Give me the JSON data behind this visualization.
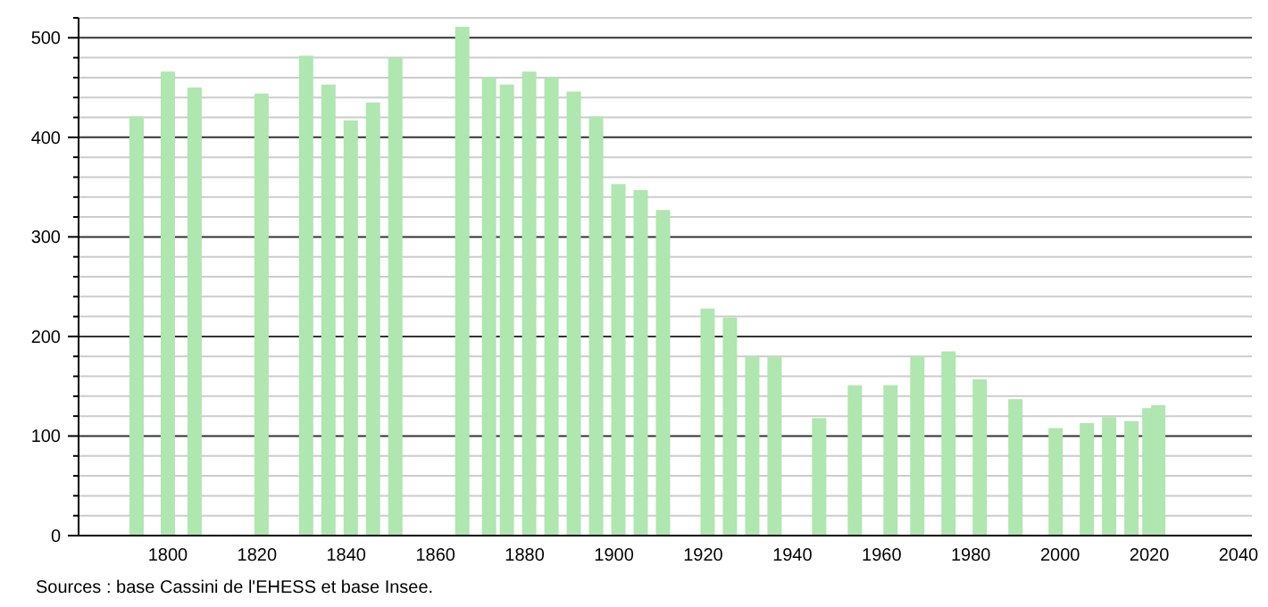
{
  "chart_data": {
    "type": "bar",
    "x": [
      1793,
      1800,
      1806,
      1821,
      1831,
      1836,
      1841,
      1846,
      1851,
      1866,
      1872,
      1876,
      1881,
      1886,
      1891,
      1896,
      1901,
      1906,
      1911,
      1921,
      1926,
      1931,
      1936,
      1946,
      1954,
      1962,
      1968,
      1975,
      1982,
      1990,
      1999,
      2006,
      2011,
      2016,
      2020,
      2022
    ],
    "values": [
      421,
      466,
      450,
      444,
      482,
      453,
      417,
      435,
      480,
      511,
      460,
      453,
      466,
      460,
      446,
      421,
      353,
      347,
      327,
      228,
      219,
      180,
      180,
      118,
      151,
      151,
      180,
      185,
      157,
      137,
      108,
      113,
      119,
      115,
      128,
      131
    ],
    "color": "#b0e6b0",
    "xlim": [
      1780,
      2043
    ],
    "xticks": [
      1800,
      1820,
      1840,
      1860,
      1880,
      1900,
      1920,
      1940,
      1960,
      1980,
      2000,
      2020,
      2040
    ],
    "ylim": [
      0,
      520
    ],
    "yticks": [
      0,
      {
        "value": 20,
        "label": null
      },
      {
        "value": 40,
        "label": null
      },
      {
        "value": 60,
        "label": null
      },
      {
        "value": 80,
        "label": null
      },
      100,
      {
        "value": 120,
        "label": null
      },
      {
        "value": 140,
        "label": null
      },
      {
        "value": 160,
        "label": null
      },
      {
        "value": 180,
        "label": null
      },
      200,
      {
        "value": 220,
        "label": null
      },
      {
        "value": 240,
        "label": null
      },
      {
        "value": 260,
        "label": null
      },
      {
        "value": 280,
        "label": null
      },
      300,
      {
        "value": 320,
        "label": null
      },
      {
        "value": 340,
        "label": null
      },
      {
        "value": 360,
        "label": null
      },
      {
        "value": 380,
        "label": null
      },
      400,
      {
        "value": 420,
        "label": null
      },
      {
        "value": 440,
        "label": null
      },
      {
        "value": 460,
        "label": null
      },
      {
        "value": 480,
        "label": null
      },
      500,
      {
        "value": 520,
        "label": null
      }
    ],
    "grid": "y",
    "annotations": [
      "Sources : base Cassini de l'EHESS et base Insee."
    ]
  }
}
